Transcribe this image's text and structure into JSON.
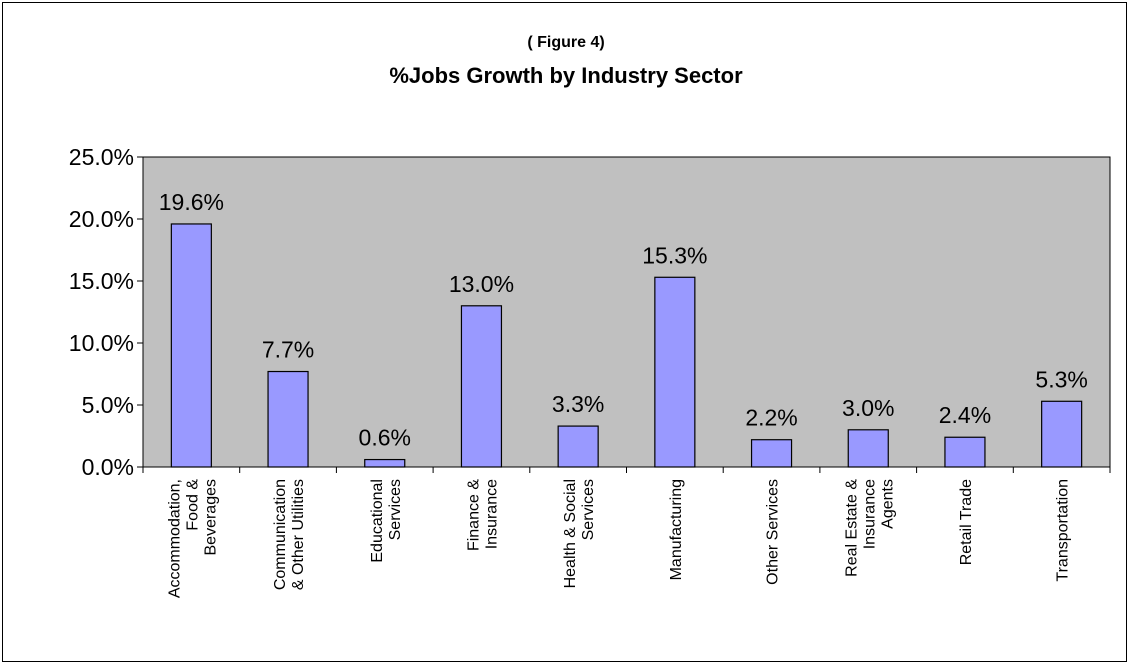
{
  "chart_data": {
    "type": "bar",
    "subtitle": "( Figure 4)",
    "title": "%Jobs Growth by Industry Sector",
    "categories": [
      [
        "Accommodation,",
        "Food &",
        "Beverages"
      ],
      [
        "Communication",
        "& Other Utilities"
      ],
      [
        "Educational",
        "Services"
      ],
      [
        "Finance &",
        "Insurance"
      ],
      [
        "Health & Social",
        "Services"
      ],
      [
        "Manufacturing"
      ],
      [
        "Other Services"
      ],
      [
        "Real Estate &",
        "Insurance",
        "Agents"
      ],
      [
        "Retail Trade"
      ],
      [
        "Transportation"
      ]
    ],
    "values": [
      19.6,
      7.7,
      0.6,
      13.0,
      3.3,
      15.3,
      2.2,
      3.0,
      2.4,
      5.3
    ],
    "data_labels": [
      "19.6%",
      "7.7%",
      "0.6%",
      "13.0%",
      "3.3%",
      "15.3%",
      "2.2%",
      "3.0%",
      "2.4%",
      "5.3%"
    ],
    "yticks": [
      0,
      5,
      10,
      15,
      20,
      25
    ],
    "ytick_labels": [
      "0.0%",
      "5.0%",
      "10.0%",
      "15.0%",
      "20.0%",
      "25.0%"
    ],
    "ylim": [
      0,
      25
    ],
    "xlabel": "",
    "ylabel": "",
    "grid": false,
    "legend": "none",
    "colors": {
      "bar_fill": "#9999ff",
      "plot_background": "#c0c0c0",
      "border": "#000000"
    }
  }
}
